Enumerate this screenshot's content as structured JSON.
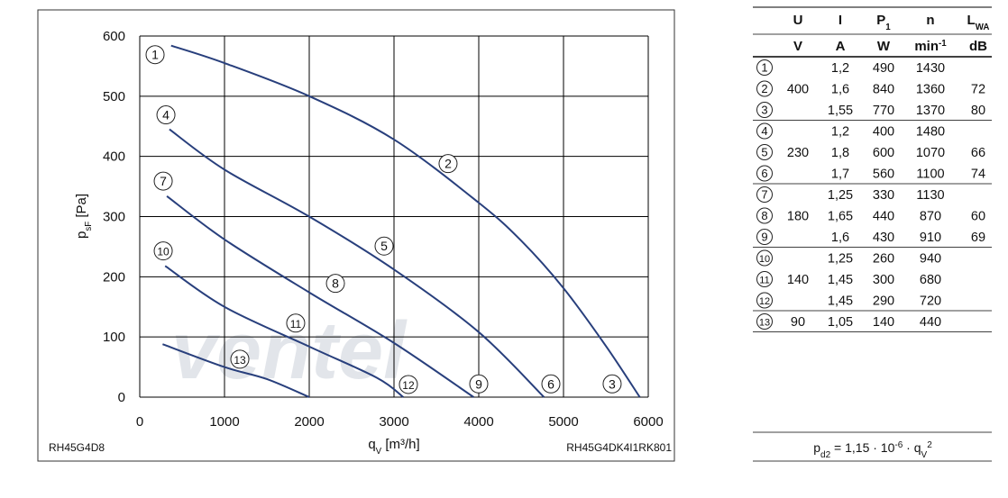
{
  "chart_data": {
    "type": "line",
    "x_label": {
      "main": "q",
      "sub": "V",
      "rest": " [m³/h]"
    },
    "y_label": {
      "main": "p",
      "sub": "sF",
      "rest": " [Pa]"
    },
    "note_left": "RH45G4D8",
    "note_right": "RH45G4DK4I1RK801",
    "watermark": "ventel",
    "xlim": [
      0,
      6000
    ],
    "xticks": [
      0,
      1000,
      2000,
      3000,
      4000,
      5000,
      6000
    ],
    "ylim": [
      0,
      600
    ],
    "yticks": [
      0,
      100,
      200,
      300,
      400,
      500,
      600
    ],
    "grid": true,
    "series": [
      {
        "color": "#283f7c",
        "x": [
          370,
          1000,
          2000,
          3000,
          4000,
          4500,
          5000,
          5500,
          5900
        ],
        "values": [
          584,
          555,
          500,
          428,
          323,
          260,
          181,
          85,
          0
        ]
      },
      {
        "color": "#283f7c",
        "x": [
          350,
          1000,
          2000,
          3000,
          4000,
          4770
        ],
        "values": [
          445,
          378,
          300,
          212,
          108,
          0
        ]
      },
      {
        "color": "#283f7c",
        "x": [
          320,
          1000,
          2000,
          3000,
          3940
        ],
        "values": [
          334,
          262,
          174,
          90,
          0
        ]
      },
      {
        "color": "#283f7c",
        "x": [
          300,
          1000,
          2000,
          2800,
          3110
        ],
        "values": [
          218,
          150,
          84,
          32,
          0
        ]
      },
      {
        "color": "#283f7c",
        "x": [
          270,
          1000,
          1500,
          2000
        ],
        "values": [
          88,
          50,
          30,
          0
        ]
      }
    ],
    "annotations": [
      {
        "label": "1",
        "x": 181,
        "y": 569
      },
      {
        "label": "2",
        "x": 3638,
        "y": 388
      },
      {
        "label": "3",
        "x": 5574,
        "y": 22
      },
      {
        "label": "4",
        "x": 309,
        "y": 469
      },
      {
        "label": "5",
        "x": 2883,
        "y": 251
      },
      {
        "label": "6",
        "x": 4851,
        "y": 22
      },
      {
        "label": "7",
        "x": 277,
        "y": 359
      },
      {
        "label": "8",
        "x": 2309,
        "y": 189
      },
      {
        "label": "9",
        "x": 4000,
        "y": 22
      },
      {
        "label": "10",
        "x": 277,
        "y": 243
      },
      {
        "label": "11",
        "x": 1840,
        "y": 123
      },
      {
        "label": "12",
        "x": 3170,
        "y": 21
      },
      {
        "label": "13",
        "x": 1181,
        "y": 63
      }
    ]
  },
  "table": {
    "header1": [
      {
        "main": "U"
      },
      {
        "main": "I"
      },
      {
        "main": "P",
        "sub": "1"
      },
      {
        "main": "n"
      },
      {
        "main": "L",
        "sub": "WA"
      }
    ],
    "header2": [
      {
        "main": "V"
      },
      {
        "main": "A"
      },
      {
        "main": "W"
      },
      {
        "main": "min",
        "sup": "-1"
      },
      {
        "main": "dB"
      }
    ],
    "groups": [
      {
        "U": "400",
        "rows": [
          {
            "no": "1",
            "I": "1,2",
            "P1": "490",
            "n": "1430"
          },
          {
            "no": "2",
            "I": "1,6",
            "P1": "840",
            "n": "1360",
            "LWA": "72"
          },
          {
            "no": "3",
            "I": "1,55",
            "P1": "770",
            "n": "1370",
            "LWA": "80"
          }
        ]
      },
      {
        "U": "230",
        "rows": [
          {
            "no": "4",
            "I": "1,2",
            "P1": "400",
            "n": "1480"
          },
          {
            "no": "5",
            "I": "1,8",
            "P1": "600",
            "n": "1070",
            "LWA": "66"
          },
          {
            "no": "6",
            "I": "1,7",
            "P1": "560",
            "n": "1100",
            "LWA": "74"
          }
        ]
      },
      {
        "U": "180",
        "rows": [
          {
            "no": "7",
            "I": "1,25",
            "P1": "330",
            "n": "1130"
          },
          {
            "no": "8",
            "I": "1,65",
            "P1": "440",
            "n": "870",
            "LWA": "60"
          },
          {
            "no": "9",
            "I": "1,6",
            "P1": "430",
            "n": "910",
            "LWA": "69"
          }
        ]
      },
      {
        "U": "140",
        "rows": [
          {
            "no": "10",
            "I": "1,25",
            "P1": "260",
            "n": "940"
          },
          {
            "no": "11",
            "I": "1,45",
            "P1": "300",
            "n": "680"
          },
          {
            "no": "12",
            "I": "1,45",
            "P1": "290",
            "n": "720"
          }
        ]
      },
      {
        "U": "90",
        "rows": [
          {
            "no": "13",
            "I": "1,05",
            "P1": "140",
            "n": "440"
          }
        ]
      }
    ],
    "formula": [
      {
        "main": "p"
      },
      {
        "sub": "d2"
      },
      {
        "main": " = 1,15 · 10"
      },
      {
        "sup": "-6"
      },
      {
        "main": " · q"
      },
      {
        "sub": "V"
      },
      {
        "sup": "2"
      }
    ]
  }
}
